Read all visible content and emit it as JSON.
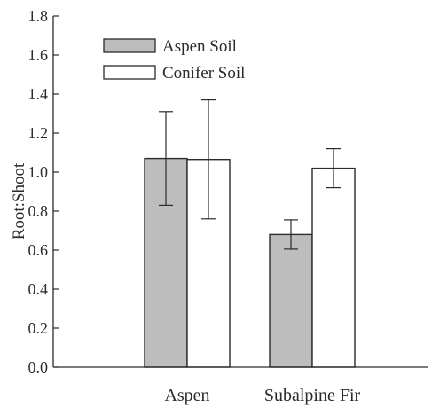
{
  "chart_data": {
    "type": "bar",
    "categories": [
      "Aspen",
      "Subalpine Fir"
    ],
    "series": [
      {
        "name": "Aspen Soil",
        "values": [
          1.07,
          0.68
        ],
        "errors": [
          0.24,
          0.075
        ],
        "color": "#bdbdbd"
      },
      {
        "name": "Conifer Soil",
        "values": [
          1.065,
          1.02
        ],
        "errors": [
          0.305,
          0.1
        ],
        "color": "#ffffff"
      }
    ],
    "ylabel": "Root:Shoot",
    "xlabel": "",
    "ylim": [
      0,
      1.8
    ],
    "yticks": [
      "0.0",
      "0.2",
      "0.4",
      "0.6",
      "0.8",
      "1.0",
      "1.2",
      "1.4",
      "1.6",
      "1.8"
    ],
    "grid": false,
    "legend_position": "top-left"
  }
}
